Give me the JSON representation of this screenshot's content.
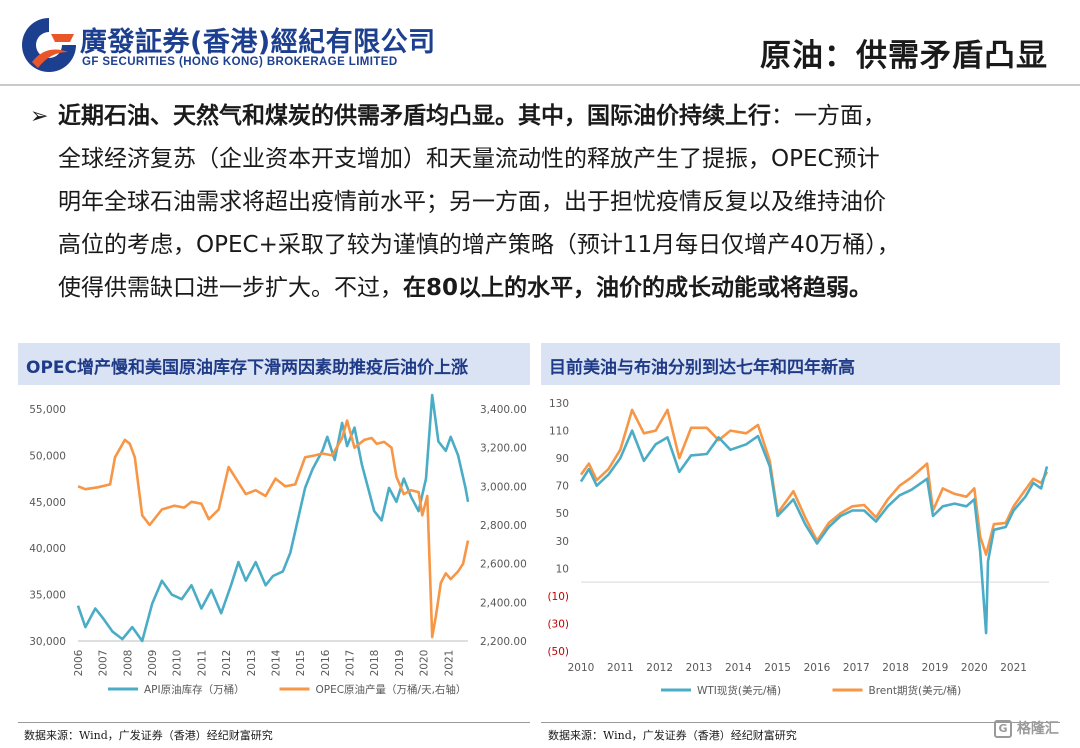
{
  "header": {
    "logo_cn": "廣發証券(香港)經紀有限公司",
    "logo_en": "GF SECURITIES (HONG KONG) BROKERAGE LIMITED",
    "page_title": "原油：供需矛盾凸显"
  },
  "body": {
    "bullet_symbol": "➢",
    "line1_bold": "近期石油、天然气和煤炭的供需矛盾均凸显。其中，国际油价持续上行",
    "line1_normal": "：一方面，",
    "line2": "全球经济复苏（企业资本开支增加）和天量流动性的释放产生了提振，OPEC预计",
    "line3": "明年全球石油需求将超出疫情前水平；另一方面，出于担忧疫情反复以及维持油价",
    "line4": "高位的考虑，OPEC+采取了较为谨慎的增产策略（预计11月每日仅增产40万桶），",
    "line5_normal": "使得供需缺口进一步扩大。不过，",
    "line5_bold": "在80以上的水平，油价的成长动能或将趋弱。"
  },
  "left_panel": {
    "title": "OPEC增产慢和美国原油库存下滑两因素助推疫后油价上涨",
    "source": "数据来源：Wind，广发证券（香港）经纪财富研究"
  },
  "right_panel": {
    "title": "目前美油与布油分别到达七年和四年新高",
    "source": "数据来源：Wind，广发证券（香港）经纪财富研究"
  },
  "watermark": "格隆汇",
  "colors": {
    "brand_blue": "#1d3f8f",
    "logo_orange": "#e8562a",
    "panel_header_bg": "#dae3f3",
    "series_teal": "#4bacc6",
    "series_orange": "#f79646",
    "negative_tick_red": "#c00000"
  },
  "chart_data": [
    {
      "type": "line",
      "title": "OPEC增产慢和美国原油库存下滑两因素助推疫后油价上涨",
      "x": [
        "2006",
        "2007",
        "2008",
        "2009",
        "2010",
        "2011",
        "2012",
        "2013",
        "2014",
        "2015",
        "2016",
        "2017",
        "2018",
        "2019",
        "2020",
        "2021"
      ],
      "ylim": [
        30000,
        55000
      ],
      "y_ticks": [
        "30,000",
        "35,000",
        "40,000",
        "45,000",
        "50,000",
        "55,000"
      ],
      "y2lim": [
        2200,
        3400
      ],
      "y2_ticks": [
        "2,200.00",
        "2,400.00",
        "2,600.00",
        "2,800.00",
        "3,000.00",
        "3,200.00",
        "3,400.00"
      ],
      "grid": false,
      "legend_position": "bottom",
      "series": [
        {
          "name": "API原油库存（万桶）",
          "axis": "left",
          "color": "#4bacc6",
          "points": [
            [
              2006.0,
              33800
            ],
            [
              2006.3,
              31500
            ],
            [
              2006.7,
              33500
            ],
            [
              2007.0,
              32500
            ],
            [
              2007.4,
              31000
            ],
            [
              2007.8,
              30200
            ],
            [
              2008.2,
              31500
            ],
            [
              2008.6,
              30000
            ],
            [
              2009.0,
              34000
            ],
            [
              2009.4,
              36500
            ],
            [
              2009.8,
              35000
            ],
            [
              2010.2,
              34500
            ],
            [
              2010.6,
              36000
            ],
            [
              2011.0,
              33500
            ],
            [
              2011.4,
              35500
            ],
            [
              2011.8,
              33000
            ],
            [
              2012.2,
              36000
            ],
            [
              2012.5,
              38500
            ],
            [
              2012.8,
              36500
            ],
            [
              2013.2,
              38500
            ],
            [
              2013.6,
              36000
            ],
            [
              2013.9,
              37000
            ],
            [
              2014.3,
              37500
            ],
            [
              2014.6,
              39500
            ],
            [
              2014.9,
              43000
            ],
            [
              2015.2,
              46500
            ],
            [
              2015.5,
              48500
            ],
            [
              2015.9,
              50500
            ],
            [
              2016.1,
              52000
            ],
            [
              2016.4,
              49500
            ],
            [
              2016.7,
              53500
            ],
            [
              2016.9,
              51000
            ],
            [
              2017.2,
              53000
            ],
            [
              2017.5,
              49000
            ],
            [
              2017.8,
              46000
            ],
            [
              2018.0,
              44000
            ],
            [
              2018.3,
              43000
            ],
            [
              2018.6,
              46500
            ],
            [
              2018.9,
              45000
            ],
            [
              2019.2,
              47500
            ],
            [
              2019.5,
              45500
            ],
            [
              2019.8,
              44000
            ],
            [
              2020.1,
              47500
            ],
            [
              2020.35,
              56500
            ],
            [
              2020.6,
              51500
            ],
            [
              2020.9,
              50500
            ],
            [
              2021.1,
              52000
            ],
            [
              2021.4,
              50000
            ],
            [
              2021.7,
              46500
            ],
            [
              2021.8,
              45000
            ]
          ]
        },
        {
          "name": "OPEC原油产量（万桶/天,右轴）",
          "axis": "right",
          "color": "#f79646",
          "points": [
            [
              2006.0,
              3000
            ],
            [
              2006.3,
              2985
            ],
            [
              2006.8,
              2995
            ],
            [
              2007.3,
              3010
            ],
            [
              2007.5,
              3150
            ],
            [
              2007.9,
              3240
            ],
            [
              2008.1,
              3220
            ],
            [
              2008.3,
              3150
            ],
            [
              2008.6,
              2850
            ],
            [
              2008.9,
              2800
            ],
            [
              2009.4,
              2880
            ],
            [
              2009.9,
              2900
            ],
            [
              2010.3,
              2890
            ],
            [
              2010.6,
              2920
            ],
            [
              2011.0,
              2910
            ],
            [
              2011.3,
              2830
            ],
            [
              2011.7,
              2880
            ],
            [
              2012.1,
              3100
            ],
            [
              2012.4,
              3040
            ],
            [
              2012.8,
              2960
            ],
            [
              2013.2,
              2980
            ],
            [
              2013.6,
              2950
            ],
            [
              2014.0,
              3040
            ],
            [
              2014.4,
              3000
            ],
            [
              2014.8,
              3010
            ],
            [
              2015.2,
              3150
            ],
            [
              2015.6,
              3160
            ],
            [
              2015.9,
              3170
            ],
            [
              2016.3,
              3160
            ],
            [
              2016.7,
              3250
            ],
            [
              2016.9,
              3340
            ],
            [
              2017.2,
              3200
            ],
            [
              2017.6,
              3240
            ],
            [
              2017.9,
              3250
            ],
            [
              2018.1,
              3220
            ],
            [
              2018.4,
              3230
            ],
            [
              2018.7,
              3200
            ],
            [
              2018.9,
              3050
            ],
            [
              2019.2,
              2960
            ],
            [
              2019.5,
              2980
            ],
            [
              2019.8,
              2970
            ],
            [
              2019.95,
              2850
            ],
            [
              2020.15,
              2950
            ],
            [
              2020.35,
              2220
            ],
            [
              2020.5,
              2330
            ],
            [
              2020.7,
              2500
            ],
            [
              2020.9,
              2550
            ],
            [
              2021.1,
              2520
            ],
            [
              2021.4,
              2560
            ],
            [
              2021.6,
              2600
            ],
            [
              2021.8,
              2720
            ]
          ]
        }
      ]
    },
    {
      "type": "line",
      "title": "目前美油与布油分别到达七年和四年新高",
      "x": [
        "2010",
        "2011",
        "2012",
        "2013",
        "2014",
        "2015",
        "2016",
        "2017",
        "2018",
        "2019",
        "2020",
        "2021"
      ],
      "ylim": [
        -50,
        130
      ],
      "y_ticks": [
        "(50)",
        "(30)",
        "(10)",
        "10",
        "30",
        "50",
        "70",
        "90",
        "110",
        "130"
      ],
      "grid": false,
      "legend_position": "bottom",
      "series": [
        {
          "name": "WTI现货(美元/桶)",
          "color": "#4bacc6",
          "points": [
            [
              2010.0,
              73
            ],
            [
              2010.2,
              82
            ],
            [
              2010.4,
              70
            ],
            [
              2010.7,
              78
            ],
            [
              2011.0,
              90
            ],
            [
              2011.3,
              110
            ],
            [
              2011.6,
              88
            ],
            [
              2011.9,
              100
            ],
            [
              2012.2,
              105
            ],
            [
              2012.5,
              80
            ],
            [
              2012.8,
              92
            ],
            [
              2013.2,
              93
            ],
            [
              2013.5,
              105
            ],
            [
              2013.8,
              96
            ],
            [
              2014.2,
              100
            ],
            [
              2014.5,
              106
            ],
            [
              2014.8,
              84
            ],
            [
              2015.0,
              48
            ],
            [
              2015.4,
              60
            ],
            [
              2015.7,
              42
            ],
            [
              2016.0,
              28
            ],
            [
              2016.3,
              40
            ],
            [
              2016.6,
              48
            ],
            [
              2016.9,
              52
            ],
            [
              2017.2,
              52
            ],
            [
              2017.5,
              44
            ],
            [
              2017.8,
              55
            ],
            [
              2018.1,
              63
            ],
            [
              2018.4,
              67
            ],
            [
              2018.8,
              75
            ],
            [
              2018.95,
              48
            ],
            [
              2019.2,
              55
            ],
            [
              2019.5,
              57
            ],
            [
              2019.8,
              55
            ],
            [
              2020.0,
              60
            ],
            [
              2020.15,
              22
            ],
            [
              2020.3,
              -37
            ],
            [
              2020.35,
              15
            ],
            [
              2020.5,
              38
            ],
            [
              2020.8,
              40
            ],
            [
              2021.0,
              52
            ],
            [
              2021.3,
              62
            ],
            [
              2021.5,
              72
            ],
            [
              2021.7,
              68
            ],
            [
              2021.85,
              84
            ]
          ]
        },
        {
          "name": "Brent期货(美元/桶)",
          "color": "#f79646",
          "points": [
            [
              2010.0,
              78
            ],
            [
              2010.2,
              86
            ],
            [
              2010.4,
              74
            ],
            [
              2010.7,
              82
            ],
            [
              2011.0,
              96
            ],
            [
              2011.3,
              125
            ],
            [
              2011.6,
              108
            ],
            [
              2011.9,
              110
            ],
            [
              2012.2,
              125
            ],
            [
              2012.5,
              90
            ],
            [
              2012.8,
              112
            ],
            [
              2013.2,
              112
            ],
            [
              2013.5,
              103
            ],
            [
              2013.8,
              110
            ],
            [
              2014.2,
              108
            ],
            [
              2014.5,
              114
            ],
            [
              2014.8,
              88
            ],
            [
              2015.0,
              50
            ],
            [
              2015.4,
              66
            ],
            [
              2015.7,
              47
            ],
            [
              2016.0,
              30
            ],
            [
              2016.3,
              43
            ],
            [
              2016.6,
              50
            ],
            [
              2016.9,
              55
            ],
            [
              2017.2,
              56
            ],
            [
              2017.5,
              47
            ],
            [
              2017.8,
              60
            ],
            [
              2018.1,
              70
            ],
            [
              2018.4,
              76
            ],
            [
              2018.8,
              86
            ],
            [
              2018.95,
              52
            ],
            [
              2019.2,
              68
            ],
            [
              2019.5,
              64
            ],
            [
              2019.8,
              62
            ],
            [
              2020.0,
              68
            ],
            [
              2020.15,
              33
            ],
            [
              2020.3,
              20
            ],
            [
              2020.5,
              42
            ],
            [
              2020.8,
              43
            ],
            [
              2021.0,
              55
            ],
            [
              2021.3,
              67
            ],
            [
              2021.5,
              75
            ],
            [
              2021.7,
              72
            ],
            [
              2021.85,
              80
            ]
          ]
        }
      ]
    }
  ]
}
